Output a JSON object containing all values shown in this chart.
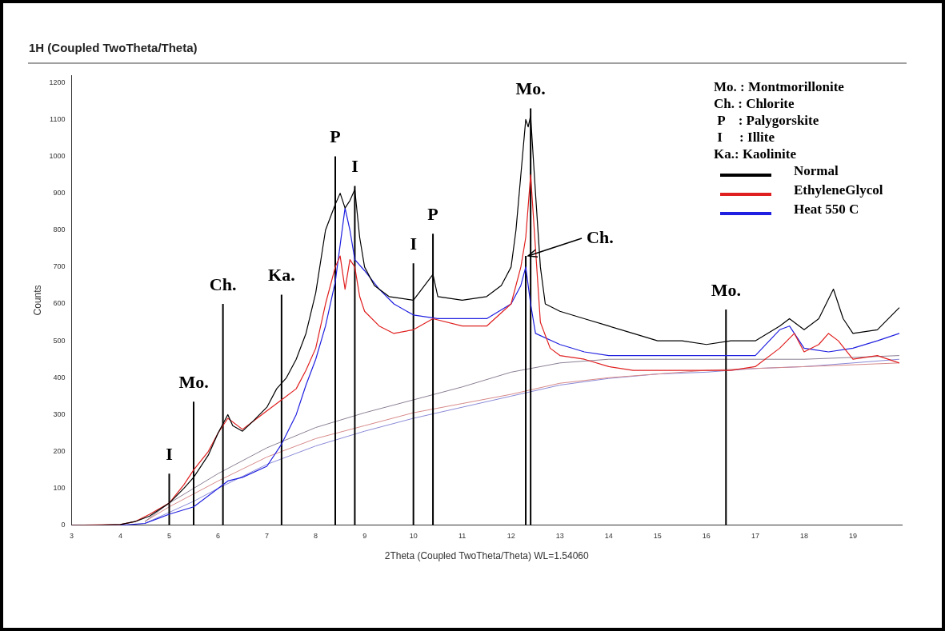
{
  "chart_data": {
    "type": "line",
    "title": "1H (Coupled TwoTheta/Theta)",
    "xlabel": "2Theta (Coupled TwoTheta/Theta) WL=1.54060",
    "ylabel": "Counts",
    "xlim": [
      3,
      20
    ],
    "xticks": [
      3,
      4,
      5,
      6,
      7,
      8,
      9,
      10,
      11,
      12,
      13,
      14,
      15,
      16,
      17,
      18,
      19
    ],
    "ylim": [
      0,
      1220
    ],
    "yticks": [
      0,
      100,
      200,
      300,
      400,
      500,
      600,
      700,
      800,
      900,
      1000,
      1100,
      1200
    ],
    "grid": false,
    "legend": "top right",
    "marker": "none",
    "line_style": "solid",
    "series": [
      {
        "name": "Normal",
        "color": "#000000",
        "x": [
          3,
          3.5,
          4,
          4.3,
          4.6,
          5,
          5.3,
          5.5,
          5.8,
          6,
          6.2,
          6.3,
          6.5,
          6.7,
          7,
          7.2,
          7.4,
          7.6,
          7.8,
          8,
          8.2,
          8.4,
          8.5,
          8.6,
          8.7,
          8.8,
          8.9,
          9,
          9.2,
          9.5,
          10,
          10.4,
          10.5,
          11,
          11.5,
          11.8,
          12,
          12.1,
          12.2,
          12.3,
          12.35,
          12.4,
          12.5,
          12.6,
          12.7,
          13,
          13.5,
          14,
          14.5,
          15,
          15.5,
          16,
          16.5,
          17,
          17.5,
          17.7,
          18,
          18.3,
          18.6,
          18.8,
          19,
          19.5,
          19.95
        ],
        "values": [
          0,
          0,
          2,
          10,
          25,
          60,
          100,
          130,
          190,
          250,
          300,
          270,
          255,
          280,
          320,
          370,
          400,
          450,
          520,
          630,
          800,
          870,
          900,
          860,
          880,
          910,
          780,
          700,
          650,
          620,
          610,
          680,
          620,
          610,
          620,
          650,
          700,
          800,
          950,
          1100,
          1080,
          1110,
          900,
          700,
          600,
          580,
          560,
          540,
          520,
          500,
          500,
          490,
          500,
          500,
          540,
          560,
          530,
          560,
          640,
          560,
          520,
          530,
          590
        ]
      },
      {
        "name": "EthyleneGlycol",
        "color": "#e02020",
        "x": [
          3,
          4,
          4.3,
          4.6,
          5,
          5.3,
          5.5,
          5.8,
          6,
          6.2,
          6.5,
          6.8,
          7,
          7.3,
          7.6,
          7.8,
          8,
          8.2,
          8.4,
          8.5,
          8.6,
          8.7,
          8.8,
          8.9,
          9,
          9.3,
          9.6,
          10,
          10.4,
          11,
          11.5,
          12,
          12.2,
          12.3,
          12.4,
          12.5,
          12.6,
          12.8,
          13,
          13.5,
          14,
          14.5,
          15,
          16,
          16.5,
          17,
          17.5,
          17.8,
          18,
          18.3,
          18.5,
          18.7,
          19,
          19.5,
          19.95
        ],
        "values": [
          0,
          2,
          10,
          30,
          60,
          110,
          150,
          200,
          250,
          290,
          260,
          290,
          310,
          340,
          370,
          420,
          480,
          600,
          700,
          730,
          640,
          720,
          700,
          620,
          580,
          540,
          520,
          530,
          560,
          540,
          540,
          600,
          700,
          780,
          950,
          750,
          550,
          480,
          460,
          450,
          430,
          420,
          420,
          420,
          420,
          430,
          480,
          520,
          470,
          490,
          520,
          500,
          450,
          460,
          440
        ]
      },
      {
        "name": "Heat 550 C",
        "color": "#2020e0",
        "x": [
          3,
          4,
          4.5,
          4.8,
          5,
          5.5,
          6,
          6.2,
          6.5,
          7,
          7.3,
          7.6,
          7.8,
          8,
          8.2,
          8.4,
          8.6,
          8.7,
          8.8,
          9,
          9.3,
          9.6,
          10,
          10.5,
          11,
          11.5,
          12,
          12.2,
          12.3,
          12.4,
          12.5,
          13,
          13.5,
          14,
          15,
          16,
          16.5,
          17,
          17.5,
          17.7,
          18,
          18.5,
          19,
          19.5,
          19.95
        ],
        "values": [
          0,
          0,
          5,
          20,
          30,
          50,
          100,
          120,
          130,
          160,
          220,
          300,
          380,
          450,
          540,
          660,
          860,
          800,
          720,
          690,
          640,
          600,
          570,
          560,
          560,
          560,
          600,
          650,
          700,
          600,
          520,
          490,
          470,
          460,
          460,
          460,
          460,
          460,
          530,
          540,
          480,
          470,
          480,
          500,
          520
        ]
      },
      {
        "color": "#000000",
        "x": [
          5.0,
          5.0
        ],
        "values": [
          0,
          140
        ]
      },
      {
        "color": "#000000",
        "x": [
          5.5,
          5.5
        ],
        "values": [
          0,
          335
        ]
      },
      {
        "color": "#000000",
        "x": [
          6.1,
          6.1
        ],
        "values": [
          0,
          600
        ]
      },
      {
        "color": "#000000",
        "x": [
          7.3,
          7.3
        ],
        "values": [
          0,
          625
        ]
      },
      {
        "color": "#000000",
        "x": [
          8.4,
          8.4
        ],
        "values": [
          0,
          1000
        ]
      },
      {
        "color": "#000000",
        "x": [
          8.8,
          8.8
        ],
        "values": [
          0,
          920
        ]
      },
      {
        "color": "#000000",
        "x": [
          10.0,
          10.0
        ],
        "values": [
          0,
          710
        ]
      },
      {
        "color": "#000000",
        "x": [
          10.4,
          10.4
        ],
        "values": [
          0,
          790
        ]
      },
      {
        "color": "#000000",
        "x": [
          12.3,
          12.3
        ],
        "values": [
          0,
          730
        ]
      },
      {
        "color": "#000000",
        "x": [
          12.4,
          12.4
        ],
        "values": [
          0,
          1130
        ]
      },
      {
        "color": "#000000",
        "x": [
          16.4,
          16.4
        ],
        "values": [
          0,
          585
        ]
      },
      {
        "color": "#8c8094",
        "x": [
          4.5,
          5,
          5.5,
          6,
          7,
          8,
          9,
          10,
          11,
          12,
          13,
          14,
          15,
          16,
          17,
          18,
          19,
          19.95
        ],
        "values": [
          10,
          60,
          100,
          140,
          210,
          265,
          305,
          340,
          375,
          415,
          440,
          450,
          450,
          450,
          450,
          450,
          455,
          460
        ]
      },
      {
        "color": "#d88a8a",
        "x": [
          4.5,
          5,
          5.5,
          6,
          7,
          8,
          9,
          10,
          11,
          12,
          13,
          14,
          15,
          16,
          17,
          18,
          19,
          19.95
        ],
        "values": [
          10,
          50,
          85,
          120,
          185,
          235,
          270,
          305,
          330,
          355,
          385,
          400,
          410,
          420,
          425,
          430,
          435,
          440
        ]
      },
      {
        "color": "#8a8ad8",
        "x": [
          4.5,
          5,
          5.5,
          6,
          7,
          8,
          9,
          10,
          11,
          12,
          13,
          14,
          15,
          16,
          17,
          18,
          19,
          19.95
        ],
        "values": [
          5,
          35,
          65,
          100,
          165,
          215,
          255,
          290,
          320,
          350,
          380,
          398,
          410,
          415,
          425,
          430,
          440,
          450
        ]
      }
    ],
    "annotations": [
      "Mo. : Montmorillonite",
      "Ch. : Chlorite",
      " P    : Palygorskite",
      " I     : Illite",
      "Ka.: Kaolinite",
      {
        "text": "I",
        "x": 5.0,
        "y": 140
      },
      {
        "text": "Mo.",
        "x": 5.5,
        "y": 335
      },
      {
        "text": "Ch.",
        "x": 6.1,
        "y": 600
      },
      {
        "text": "Ka.",
        "x": 7.3,
        "y": 625
      },
      {
        "text": "P",
        "x": 8.4,
        "y": 1000
      },
      {
        "text": "I",
        "x": 8.8,
        "y": 920
      },
      {
        "text": "I",
        "x": 10.0,
        "y": 710
      },
      {
        "text": "P",
        "x": 10.4,
        "y": 790
      },
      {
        "text": "Ch.",
        "x": 12.3,
        "y": 730
      },
      {
        "text": "Mo.",
        "x": 12.4,
        "y": 1130
      },
      {
        "text": "Mo.",
        "x": 16.4,
        "y": 585
      }
    ]
  }
}
